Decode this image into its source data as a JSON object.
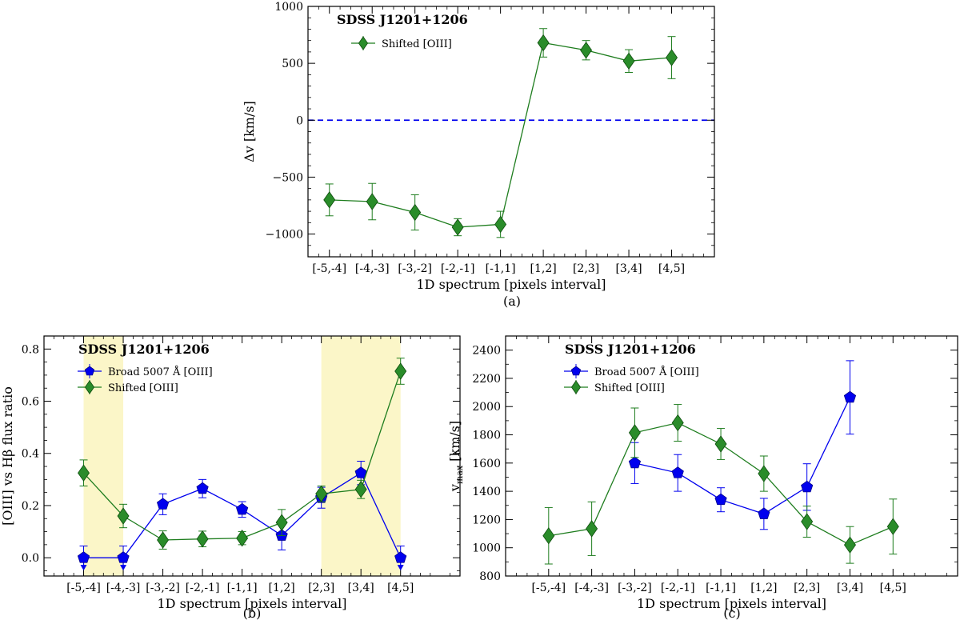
{
  "chart_data": [
    {
      "id": "a",
      "type": "line",
      "title": "SDSS J1201+1206",
      "caption": "(a)",
      "xlabel": "1D spectrum [pixels interval]",
      "ylabel": "Δv [km/s]",
      "categories": [
        "[-5,-4]",
        "[-4,-3]",
        "[-3,-2]",
        "[-2,-1]",
        "[-1,1]",
        "[1,2]",
        "[2,3]",
        "[3,4]",
        "[4,5]"
      ],
      "xlim": [
        -0.5,
        9.0
      ],
      "ylim": [
        -1200,
        1000
      ],
      "yticks": [
        -1000,
        -500,
        0,
        500,
        1000
      ],
      "yticklabels": [
        "−1000",
        "−500",
        "0",
        "500",
        "1000"
      ],
      "yminor": 100,
      "hline": {
        "y": 0,
        "color": "#0000ee",
        "style": "dashed"
      },
      "bands": [],
      "legend": [
        "Shifted [OIII]"
      ],
      "series": [
        {
          "name": "Shifted [OIII]",
          "color": "#1e7d1e",
          "fill": "#2a8c2a",
          "marker": "diamond",
          "x": [
            0,
            1,
            2,
            3,
            4,
            5,
            6,
            7,
            8
          ],
          "values": [
            -700,
            -715,
            -810,
            -940,
            -915,
            680,
            615,
            520,
            550
          ],
          "err_low": [
            140,
            160,
            155,
            75,
            115,
            125,
            85,
            100,
            185
          ],
          "err_high": [
            140,
            160,
            155,
            75,
            115,
            125,
            85,
            100,
            185
          ]
        }
      ]
    },
    {
      "id": "b",
      "type": "line",
      "title": "SDSS J1201+1206",
      "caption": "(b)",
      "xlabel": "1D spectrum [pixels interval]",
      "ylabel": "[OIII] vs Hβ flux ratio",
      "categories": [
        "[-5,-4]",
        "[-4,-3]",
        "[-3,-2]",
        "[-2,-1]",
        "[-1,1]",
        "[1,2]",
        "[2,3]",
        "[3,4]",
        "[4,5]"
      ],
      "xlim": [
        -1.0,
        9.5
      ],
      "ylim": [
        -0.07,
        0.85
      ],
      "yticks": [
        0.0,
        0.2,
        0.4,
        0.6,
        0.8
      ],
      "yticklabels": [
        "0.0",
        "0.2",
        "0.4",
        "0.6",
        "0.8"
      ],
      "yminor": 0.05,
      "hline": null,
      "bands": [
        {
          "from": 0.0,
          "to": 1.0,
          "color": "#fbf6c8"
        },
        {
          "from": 6.0,
          "to": 8.0,
          "color": "#fbf6c8"
        }
      ],
      "legend": [
        "Broad 5007 Å [OIII]",
        "Shifted [OIII]"
      ],
      "series": [
        {
          "name": "Broad 5007 Å [OIII]",
          "color": "#0000ee",
          "fill": "#0000ee",
          "marker": "pentagon",
          "x": [
            0,
            1,
            2,
            3,
            4,
            5,
            6,
            7,
            8
          ],
          "values": [
            0.0,
            0.0,
            0.205,
            0.265,
            0.185,
            0.085,
            0.23,
            0.325,
            0.0
          ],
          "err_low": [
            0.0,
            0.0,
            0.04,
            0.035,
            0.03,
            0.055,
            0.04,
            0.045,
            0.0
          ],
          "err_high": [
            0.045,
            0.045,
            0.04,
            0.035,
            0.03,
            0.055,
            0.04,
            0.045,
            0.045
          ],
          "upper_limit": [
            true,
            true,
            false,
            false,
            false,
            false,
            false,
            false,
            true
          ]
        },
        {
          "name": "Shifted [OIII]",
          "color": "#1e7d1e",
          "fill": "#2a8c2a",
          "marker": "diamond",
          "x": [
            0,
            1,
            2,
            3,
            4,
            5,
            6,
            7,
            8
          ],
          "values": [
            0.325,
            0.16,
            0.068,
            0.072,
            0.075,
            0.135,
            0.245,
            0.262,
            0.715
          ],
          "err_low": [
            0.05,
            0.045,
            0.035,
            0.03,
            0.025,
            0.05,
            0.03,
            0.035,
            0.05
          ],
          "err_high": [
            0.05,
            0.045,
            0.035,
            0.03,
            0.025,
            0.05,
            0.03,
            0.035,
            0.05
          ]
        }
      ]
    },
    {
      "id": "c",
      "type": "line",
      "title": "SDSS J1201+1206",
      "caption": "(c)",
      "xlabel": "1D spectrum [pixels interval]",
      "ylabel": "v",
      "ylabel_sub": "max",
      "ylabel_unit": " [km/s]",
      "categories": [
        "[-5,-4]",
        "[-4,-3]",
        "[-3,-2]",
        "[-2,-1]",
        "[-1,1]",
        "[1,2]",
        "[2,3]",
        "[3,4]",
        "[4,5]"
      ],
      "xlim": [
        -1.0,
        9.5
      ],
      "ylim": [
        800,
        2500
      ],
      "yticks": [
        800,
        1000,
        1200,
        1400,
        1600,
        1800,
        2000,
        2200,
        2400
      ],
      "yticklabels": [
        "800",
        "1000",
        "1200",
        "1400",
        "1600",
        "1800",
        "2000",
        "2200",
        "2400"
      ],
      "yminor": 100,
      "hline": null,
      "bands": [],
      "legend": [
        "Broad 5007 Å [OIII]",
        "Shifted [OIII]"
      ],
      "series": [
        {
          "name": "Broad 5007 Å [OIII]",
          "color": "#0000ee",
          "fill": "#0000ee",
          "marker": "pentagon",
          "x": [
            2,
            3,
            4,
            5,
            6,
            7
          ],
          "values": [
            1600,
            1530,
            1340,
            1240,
            1430,
            2065
          ],
          "err_low": [
            145,
            130,
            85,
            110,
            165,
            260
          ],
          "err_high": [
            145,
            130,
            85,
            110,
            165,
            260
          ]
        },
        {
          "name": "Shifted [OIII]",
          "color": "#1e7d1e",
          "fill": "#2a8c2a",
          "marker": "diamond",
          "x": [
            0,
            1,
            2,
            3,
            4,
            5,
            6,
            7,
            8
          ],
          "values": [
            1085,
            1135,
            1815,
            1885,
            1735,
            1525,
            1185,
            1020,
            1150
          ],
          "err_low": [
            200,
            190,
            175,
            130,
            110,
            125,
            110,
            130,
            195
          ],
          "err_high": [
            200,
            190,
            175,
            130,
            110,
            125,
            110,
            130,
            195
          ]
        }
      ]
    }
  ]
}
